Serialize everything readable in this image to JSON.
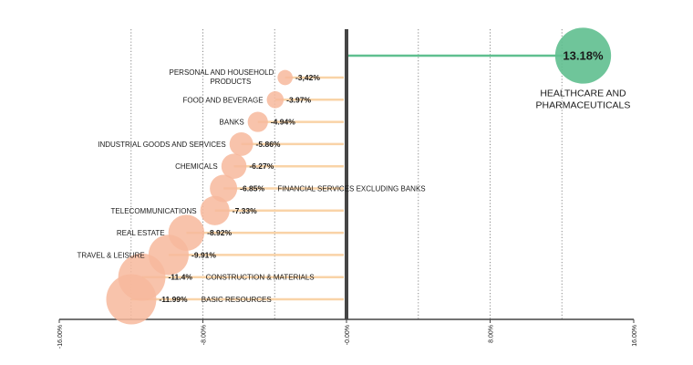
{
  "chart_data": {
    "type": "bubble-lollipop",
    "xlim": [
      -16,
      16
    ],
    "x_ticks": [
      {
        "value": -16,
        "label": "-16.00%"
      },
      {
        "value": -8,
        "label": "-8.00%"
      },
      {
        "value": 0,
        "label": "-0.00%"
      },
      {
        "value": 8,
        "label": "8.00%"
      },
      {
        "value": 16,
        "label": "16.00%"
      }
    ],
    "grid_x": [
      -12,
      -8,
      -4,
      4,
      8,
      12
    ],
    "colors": {
      "negative_bubble": "#f7b99c",
      "negative_line": "#f9d3a7",
      "positive": "#5fbf8f",
      "zero_axis": "#454545",
      "grid": "#8a8a8a",
      "text": "#1a1a1a"
    },
    "series": [
      {
        "category": "HEALTHCARE AND PHARMACEUTICALS",
        "value": 13.18,
        "value_label": "13.18%"
      },
      {
        "category": "PERSONAL AND HOUSEHOLD PRODUCTS",
        "value": -3.42,
        "value_label": "-3,42%"
      },
      {
        "category": "FOOD AND BEVERAGE",
        "value": -3.97,
        "value_label": "-3.97%"
      },
      {
        "category": "BANKS",
        "value": -4.94,
        "value_label": "-4.94%"
      },
      {
        "category": "INDUSTRIAL GOODS AND SERVICES",
        "value": -5.86,
        "value_label": "-5.86%"
      },
      {
        "category": "CHEMICALS",
        "value": -6.27,
        "value_label": "-6.27%"
      },
      {
        "category": "FINANCIAL SERVICES EXCLUDING BANKS",
        "value": -6.85,
        "value_label": "-6.85%"
      },
      {
        "category": "TELECOMMUNICATIONS",
        "value": -7.33,
        "value_label": "-7.33%"
      },
      {
        "category": "REAL ESTATE",
        "value": -8.92,
        "value_label": "-8.92%"
      },
      {
        "category": "TRAVEL & LEISURE",
        "value": -9.91,
        "value_label": "-9.91%"
      },
      {
        "category": "CONSTRUCTION & MATERIALS",
        "value": -11.4,
        "value_label": "-11.4%"
      },
      {
        "category": "BASIC RESOURCES",
        "value": -11.99,
        "value_label": "-11.99%"
      }
    ]
  }
}
